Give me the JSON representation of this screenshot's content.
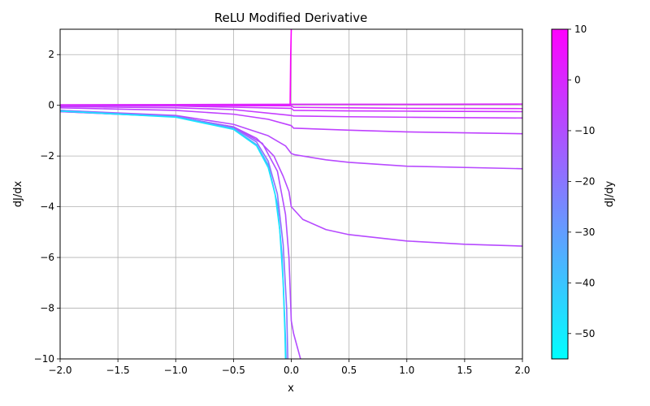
{
  "chart_data": {
    "type": "line",
    "title": "ReLU Modified Derivative",
    "xlabel": "x",
    "ylabel": "dJ/dx",
    "xlim": [
      -2.0,
      2.0
    ],
    "ylim": [
      -10,
      3
    ],
    "grid": true,
    "x_ticks": [
      "−2.0",
      "−1.5",
      "−1.0",
      "−0.5",
      "0.0",
      "0.5",
      "1.0",
      "1.5",
      "2.0"
    ],
    "y_ticks": [
      "−10",
      "−8",
      "−6",
      "−4",
      "−2",
      "0",
      "2"
    ],
    "colorbar": {
      "label": "dJ/dy",
      "colormap": "cool",
      "range": [
        -55,
        10
      ],
      "ticks": [
        "10",
        "0",
        "−10",
        "−20",
        "−30",
        "−40",
        "−50"
      ],
      "color_low": "#00ffff",
      "color_high": "#ff00ff"
    },
    "series": [
      {
        "color": "#dd22ff",
        "points": [
          [
            -2.0,
            0.02
          ],
          [
            -1.0,
            0.03
          ],
          [
            0.0,
            0.04
          ],
          [
            1.0,
            0.04
          ],
          [
            2.0,
            0.05
          ]
        ]
      },
      {
        "color": "#ff00ff",
        "points": [
          [
            -2.0,
            -0.02
          ],
          [
            -1.0,
            -0.01
          ],
          [
            -0.01,
            0.0
          ],
          [
            -0.005,
            2.0
          ],
          [
            0.0,
            3.0
          ]
        ]
      },
      {
        "color": "#d92cff",
        "points": [
          [
            -2.0,
            0.0
          ],
          [
            -1.0,
            -0.01
          ],
          [
            0.0,
            -0.02
          ],
          [
            0.02,
            -0.08
          ],
          [
            0.5,
            -0.1
          ],
          [
            1.0,
            -0.12
          ],
          [
            2.0,
            -0.13
          ]
        ]
      },
      {
        "color": "#cc33ff",
        "points": [
          [
            -2.0,
            -0.01
          ],
          [
            -1.0,
            -0.03
          ],
          [
            0.0,
            -0.12
          ],
          [
            0.02,
            -0.2
          ],
          [
            0.5,
            -0.22
          ],
          [
            1.0,
            -0.23
          ],
          [
            2.0,
            -0.25
          ]
        ]
      },
      {
        "color": "#c43bff",
        "points": [
          [
            -2.0,
            -0.05
          ],
          [
            -1.0,
            -0.1
          ],
          [
            -0.5,
            -0.17
          ],
          [
            0.0,
            -0.4
          ],
          [
            0.02,
            -0.42
          ],
          [
            0.5,
            -0.45
          ],
          [
            1.0,
            -0.47
          ],
          [
            2.0,
            -0.5
          ]
        ]
      },
      {
        "color": "#bf40ff",
        "points": [
          [
            -2.0,
            -0.1
          ],
          [
            -1.0,
            -0.2
          ],
          [
            -0.5,
            -0.35
          ],
          [
            -0.2,
            -0.55
          ],
          [
            0.0,
            -0.8
          ],
          [
            0.02,
            -0.9
          ],
          [
            0.5,
            -0.98
          ],
          [
            1.0,
            -1.05
          ],
          [
            2.0,
            -1.12
          ]
        ]
      },
      {
        "color": "#b84aff",
        "points": [
          [
            -2.0,
            -0.2
          ],
          [
            -1.0,
            -0.4
          ],
          [
            -0.5,
            -0.75
          ],
          [
            -0.2,
            -1.2
          ],
          [
            -0.05,
            -1.6
          ],
          [
            0.0,
            -1.9
          ],
          [
            0.03,
            -1.95
          ],
          [
            0.3,
            -2.15
          ],
          [
            0.5,
            -2.25
          ],
          [
            1.0,
            -2.4
          ],
          [
            2.0,
            -2.5
          ]
        ]
      },
      {
        "color": "#b64aff",
        "points": [
          [
            -2.0,
            -0.25
          ],
          [
            -1.0,
            -0.45
          ],
          [
            -0.5,
            -0.85
          ],
          [
            -0.3,
            -1.3
          ],
          [
            -0.15,
            -2.0
          ],
          [
            -0.07,
            -2.8
          ],
          [
            -0.02,
            -3.4
          ],
          [
            0.0,
            -4.0
          ],
          [
            0.02,
            -4.1
          ],
          [
            0.1,
            -4.5
          ],
          [
            0.3,
            -4.9
          ],
          [
            0.5,
            -5.1
          ],
          [
            1.0,
            -5.35
          ],
          [
            1.5,
            -5.48
          ],
          [
            2.0,
            -5.55
          ]
        ]
      },
      {
        "color": "#b34dff",
        "points": [
          [
            -2.0,
            -0.25
          ],
          [
            -1.0,
            -0.45
          ],
          [
            -0.5,
            -0.85
          ],
          [
            -0.25,
            -1.5
          ],
          [
            -0.12,
            -2.6
          ],
          [
            -0.05,
            -4.3
          ],
          [
            -0.02,
            -6.0
          ],
          [
            0.0,
            -8.5
          ],
          [
            0.02,
            -9.0
          ],
          [
            0.05,
            -9.5
          ],
          [
            0.08,
            -10.0
          ]
        ]
      },
      {
        "color": "#8f70ff",
        "points": [
          [
            -2.0,
            -0.2
          ],
          [
            -1.0,
            -0.43
          ],
          [
            -0.5,
            -0.88
          ],
          [
            -0.3,
            -1.45
          ],
          [
            -0.2,
            -2.2
          ],
          [
            -0.12,
            -3.5
          ],
          [
            -0.07,
            -5.5
          ],
          [
            -0.04,
            -8.0
          ],
          [
            -0.03,
            -10.0
          ]
        ]
      },
      {
        "color": "#55aaff",
        "points": [
          [
            -2.0,
            -0.22
          ],
          [
            -1.0,
            -0.45
          ],
          [
            -0.5,
            -0.92
          ],
          [
            -0.3,
            -1.55
          ],
          [
            -0.2,
            -2.35
          ],
          [
            -0.12,
            -3.9
          ],
          [
            -0.08,
            -5.9
          ],
          [
            -0.05,
            -9.2
          ],
          [
            -0.045,
            -10.0
          ]
        ]
      },
      {
        "color": "#1ae5ff",
        "points": [
          [
            -2.0,
            -0.23
          ],
          [
            -1.0,
            -0.47
          ],
          [
            -0.5,
            -0.95
          ],
          [
            -0.3,
            -1.6
          ],
          [
            -0.2,
            -2.45
          ],
          [
            -0.14,
            -3.5
          ],
          [
            -0.1,
            -4.9
          ],
          [
            -0.07,
            -7.0
          ],
          [
            -0.055,
            -9.0
          ],
          [
            -0.05,
            -10.0
          ]
        ]
      }
    ]
  }
}
